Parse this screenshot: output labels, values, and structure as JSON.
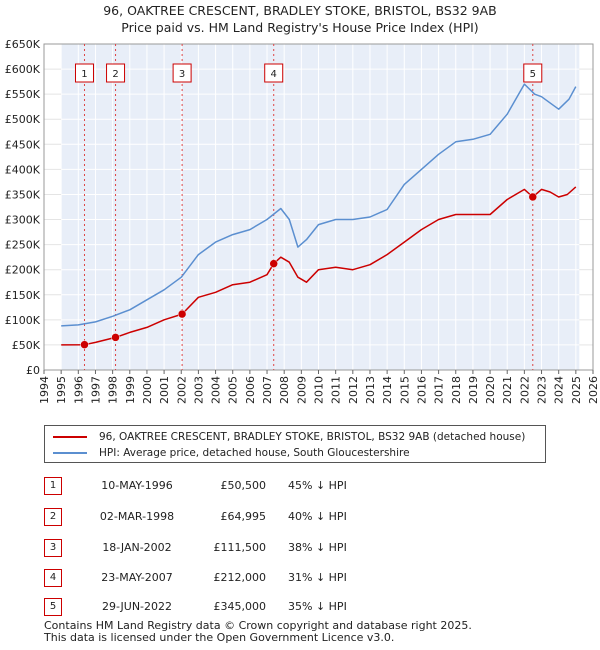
{
  "title": {
    "line1": "96, OAKTREE CRESCENT, BRADLEY STOKE, BRISTOL, BS32 9AB",
    "line2": "Price paid vs. HM Land Registry's House Price Index (HPI)"
  },
  "colors": {
    "property": "#cc0000",
    "hpi": "#5b8fd0",
    "sale_line": "#dd4444",
    "shade": "#e8eef8"
  },
  "chart_data": {
    "type": "line",
    "xlim": [
      1994,
      2026
    ],
    "ylim": [
      0,
      650000
    ],
    "y_ticks": [
      0,
      50000,
      100000,
      150000,
      200000,
      250000,
      300000,
      350000,
      400000,
      450000,
      500000,
      550000,
      600000,
      650000
    ],
    "y_tick_labels": [
      "£0",
      "£50K",
      "£100K",
      "£150K",
      "£200K",
      "£250K",
      "£300K",
      "£350K",
      "£400K",
      "£450K",
      "£500K",
      "£550K",
      "£600K",
      "£650K"
    ],
    "x_ticks": [
      1994,
      1995,
      1996,
      1997,
      1998,
      1999,
      2000,
      2001,
      2002,
      2003,
      2004,
      2005,
      2006,
      2007,
      2008,
      2009,
      2010,
      2011,
      2012,
      2013,
      2014,
      2015,
      2016,
      2017,
      2018,
      2019,
      2020,
      2021,
      2022,
      2023,
      2024,
      2025,
      2026
    ],
    "x_tick_labels": [
      "1994",
      "1995",
      "1996",
      "1997",
      "1998",
      "1999",
      "2000",
      "2001",
      "2002",
      "2003",
      "2004",
      "2005",
      "2006",
      "2007",
      "2008",
      "2009",
      "2010",
      "2011",
      "2012",
      "2013",
      "2014",
      "2015",
      "2016",
      "2017",
      "2018",
      "2019",
      "2020",
      "2021",
      "2022",
      "2023",
      "2024",
      "2025",
      "2026"
    ],
    "grid": true,
    "data_range": [
      1995.0,
      2025.2
    ],
    "series": [
      {
        "name": "96, OAKTREE CRESCENT, BRADLEY STOKE, BRISTOL, BS32 9AB (detached house)",
        "x": [
          1995.0,
          1996.36,
          1997.0,
          1998.17,
          1999.0,
          2000.0,
          2001.0,
          2002.05,
          2003.0,
          2004.0,
          2005.0,
          2006.0,
          2007.0,
          2007.39,
          2007.8,
          2008.3,
          2008.8,
          2009.3,
          2010.0,
          2011.0,
          2012.0,
          2013.0,
          2014.0,
          2015.0,
          2016.0,
          2017.0,
          2018.0,
          2019.0,
          2020.0,
          2021.0,
          2022.0,
          2022.49,
          2023.0,
          2023.5,
          2024.0,
          2024.5,
          2025.0
        ],
        "y": [
          50000,
          50500,
          55000,
          64995,
          75000,
          85000,
          100000,
          111500,
          145000,
          155000,
          170000,
          175000,
          190000,
          212000,
          225000,
          215000,
          185000,
          175000,
          200000,
          205000,
          200000,
          210000,
          230000,
          255000,
          280000,
          300000,
          310000,
          310000,
          310000,
          340000,
          360000,
          345000,
          360000,
          355000,
          345000,
          350000,
          365000
        ]
      },
      {
        "name": "HPI: Average price, detached house, South Gloucestershire",
        "x": [
          1995.0,
          1996.0,
          1997.0,
          1998.0,
          1999.0,
          2000.0,
          2001.0,
          2002.0,
          2003.0,
          2004.0,
          2005.0,
          2006.0,
          2007.0,
          2007.8,
          2008.3,
          2008.8,
          2009.3,
          2010.0,
          2011.0,
          2012.0,
          2013.0,
          2014.0,
          2015.0,
          2016.0,
          2017.0,
          2018.0,
          2019.0,
          2020.0,
          2021.0,
          2022.0,
          2022.6,
          2023.0,
          2023.6,
          2024.0,
          2024.6,
          2025.0
        ],
        "y": [
          88000,
          90000,
          96000,
          107000,
          120000,
          140000,
          160000,
          185000,
          230000,
          255000,
          270000,
          280000,
          300000,
          322000,
          300000,
          245000,
          260000,
          290000,
          300000,
          300000,
          305000,
          320000,
          370000,
          400000,
          430000,
          455000,
          460000,
          470000,
          510000,
          570000,
          550000,
          545000,
          530000,
          520000,
          540000,
          565000
        ]
      }
    ],
    "sales": [
      {
        "num": "1",
        "x": 1996.36,
        "y": 50500
      },
      {
        "num": "2",
        "x": 1998.17,
        "y": 64995
      },
      {
        "num": "3",
        "x": 2002.05,
        "y": 111500
      },
      {
        "num": "4",
        "x": 2007.39,
        "y": 212000
      },
      {
        "num": "5",
        "x": 2022.49,
        "y": 345000
      }
    ]
  },
  "legend": {
    "property": "96, OAKTREE CRESCENT, BRADLEY STOKE, BRISTOL, BS32 9AB (detached house)",
    "hpi": "HPI: Average price, detached house, South Gloucestershire"
  },
  "transactions": [
    {
      "num": "1",
      "date": "10-MAY-1996",
      "price": "£50,500",
      "hpi": "45% ↓ HPI"
    },
    {
      "num": "2",
      "date": "02-MAR-1998",
      "price": "£64,995",
      "hpi": "40% ↓ HPI"
    },
    {
      "num": "3",
      "date": "18-JAN-2002",
      "price": "£111,500",
      "hpi": "38% ↓ HPI"
    },
    {
      "num": "4",
      "date": "23-MAY-2007",
      "price": "£212,000",
      "hpi": "31% ↓ HPI"
    },
    {
      "num": "5",
      "date": "29-JUN-2022",
      "price": "£345,000",
      "hpi": "35% ↓ HPI"
    }
  ],
  "footer": {
    "line1": "Contains HM Land Registry data © Crown copyright and database right 2025.",
    "line2": "This data is licensed under the Open Government Licence v3.0."
  }
}
